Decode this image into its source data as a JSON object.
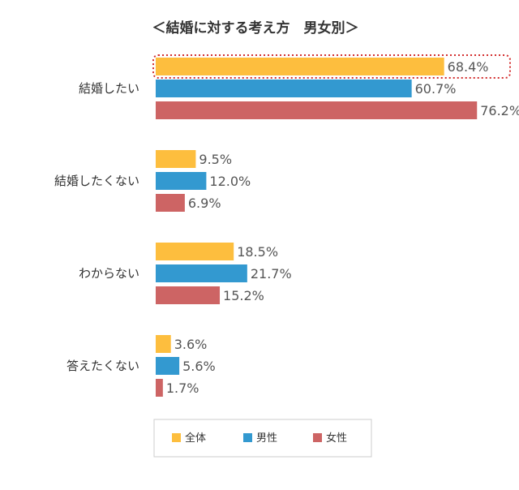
{
  "chart_data": {
    "type": "bar",
    "orientation": "horizontal",
    "title": "＜結婚に対する考え方　男女別＞",
    "categories": [
      "結婚したい",
      "結婚したくない",
      "わからない",
      "答えたくない"
    ],
    "series": [
      {
        "name": "全体",
        "color": "#FDBE3E",
        "values": [
          68.4,
          9.5,
          18.5,
          3.6
        ]
      },
      {
        "name": "男性",
        "color": "#3399D0",
        "values": [
          60.7,
          12.0,
          21.7,
          5.6
        ]
      },
      {
        "name": "女性",
        "color": "#CD6464",
        "values": [
          76.2,
          6.9,
          15.2,
          1.7
        ]
      }
    ],
    "value_suffix": "%",
    "xlim": [
      0,
      100
    ],
    "grid": false,
    "legend_position": "bottom",
    "highlight": {
      "category_index": 0,
      "series_index": 0,
      "style": "red-dotted-box"
    }
  }
}
